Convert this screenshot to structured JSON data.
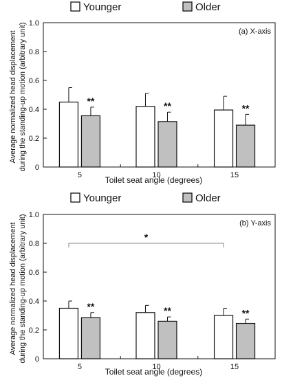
{
  "chart_data": [
    {
      "type": "bar",
      "panel_label": "(a) X-axis",
      "categories": [
        "5",
        "10",
        "15"
      ],
      "series": [
        {
          "name": "Younger",
          "color": "#ffffff",
          "values": [
            0.45,
            0.42,
            0.395
          ],
          "errors": [
            0.1,
            0.09,
            0.095
          ]
        },
        {
          "name": "Older",
          "color": "#c0c0c0",
          "values": [
            0.355,
            0.315,
            0.29
          ],
          "errors": [
            0.06,
            0.065,
            0.075
          ]
        }
      ],
      "significance": [
        "**",
        "**",
        "**"
      ],
      "bracket": null,
      "xlabel": "Toilet seat angle (degrees)",
      "ylabel": [
        "Average normalized head displacement",
        "during the standing-up motion (arbitrary unit)"
      ],
      "ylim": [
        0,
        1.0
      ],
      "yticks": [
        "0",
        "0.2",
        "0.4",
        "0.6",
        "0.8",
        "1.0"
      ],
      "legend_position": "top"
    },
    {
      "type": "bar",
      "panel_label": "(b) Y-axis",
      "categories": [
        "5",
        "10",
        "15"
      ],
      "series": [
        {
          "name": "Younger",
          "color": "#ffffff",
          "values": [
            0.35,
            0.32,
            0.3
          ],
          "errors": [
            0.05,
            0.05,
            0.05
          ]
        },
        {
          "name": "Older",
          "color": "#c0c0c0",
          "values": [
            0.285,
            0.26,
            0.245
          ],
          "errors": [
            0.035,
            0.03,
            0.03
          ]
        }
      ],
      "significance": [
        "**",
        "**",
        "**"
      ],
      "bracket": {
        "from": 0,
        "to": 2,
        "label": "*",
        "y": 0.8
      },
      "xlabel": "Toilet seat angle (degrees)",
      "ylabel": [
        "Average normalized head displacement",
        "during the standing-up motion (arbitrary unit)"
      ],
      "ylim": [
        0,
        1.0
      ],
      "yticks": [
        "0",
        "0.2",
        "0.4",
        "0.6",
        "0.8",
        "1.0"
      ],
      "legend_position": "top"
    }
  ]
}
